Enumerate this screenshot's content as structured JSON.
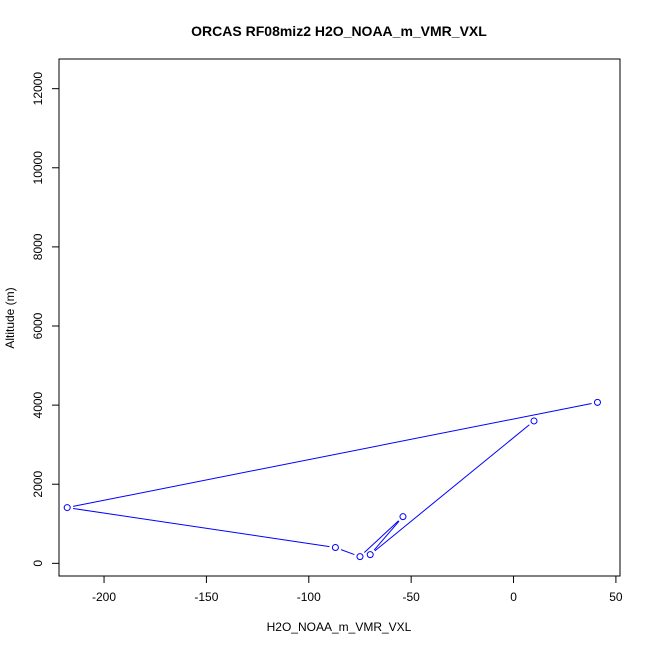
{
  "chart_data": {
    "type": "scatter",
    "title": "ORCAS RF08miz2 H2O_NOAA_m_VMR_VXL",
    "xlabel": "H2O_NOAA_m_VMR_VXL",
    "ylabel": "Altitude (m)",
    "xlim": [
      -222,
      52
    ],
    "ylim": [
      -320,
      12750
    ],
    "x_ticks": [
      -200,
      -150,
      -100,
      -50,
      0,
      50
    ],
    "x_tick_labels": [
      "-200",
      "-150",
      "-100",
      "-50",
      "0",
      "50"
    ],
    "y_ticks": [
      0,
      2000,
      4000,
      6000,
      8000,
      10000,
      12000
    ],
    "y_tick_labels": [
      "0",
      "2000",
      "4000",
      "6000",
      "8000",
      "10000",
      "12000"
    ],
    "grid": false,
    "series": [
      {
        "color": "#0000ff",
        "marker": "open-circle",
        "connected": true,
        "points": [
          {
            "x": 10,
            "y": 3600
          },
          {
            "x": -70,
            "y": 220
          },
          {
            "x": -54,
            "y": 1180
          },
          {
            "x": -75,
            "y": 170
          },
          {
            "x": -87,
            "y": 400
          },
          {
            "x": -218,
            "y": 1410
          },
          {
            "x": 41,
            "y": 4070
          }
        ]
      }
    ]
  }
}
